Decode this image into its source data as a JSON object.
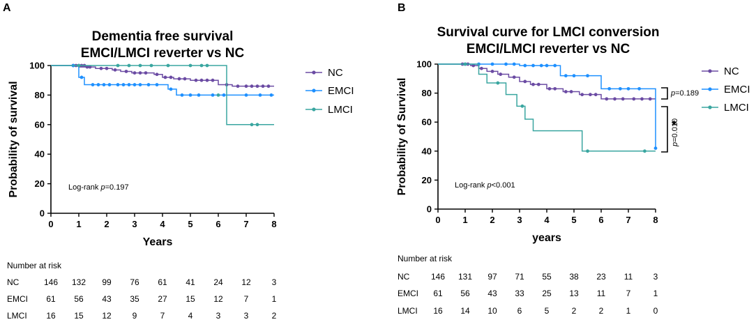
{
  "chart_data": [
    {
      "panel_label": "A",
      "type": "line",
      "title": "Dementia free survival",
      "subtitle": "EMCI/LMCI reverter vs NC",
      "xlabel": "Years",
      "ylabel": "Probability of survival",
      "xlim": [
        0,
        8
      ],
      "ylim": [
        0,
        100
      ],
      "xticks": [
        0,
        1,
        2,
        3,
        4,
        5,
        6,
        7,
        8
      ],
      "yticks": [
        0,
        20,
        40,
        60,
        80,
        100
      ],
      "grid": false,
      "legend_position": "right",
      "annotation_prefix": "Log-rank ",
      "annotation_p": "p",
      "annotation_value": "=0.197",
      "series": [
        {
          "name": "NC",
          "color": "#6b4ba3",
          "steps": [
            [
              0,
              100
            ],
            [
              1.0,
              99
            ],
            [
              1.6,
              98
            ],
            [
              2.2,
              97
            ],
            [
              2.5,
              96
            ],
            [
              2.9,
              95
            ],
            [
              3.7,
              94
            ],
            [
              4.0,
              92
            ],
            [
              4.4,
              91
            ],
            [
              5.0,
              90
            ],
            [
              6.0,
              87
            ],
            [
              6.5,
              86
            ],
            [
              8.0,
              86
            ]
          ],
          "censors": [
            [
              0.8,
              100
            ],
            [
              0.9,
              100
            ],
            [
              1.0,
              100
            ],
            [
              1.1,
              100
            ],
            [
              1.2,
              100
            ],
            [
              1.3,
              99
            ],
            [
              1.4,
              99
            ],
            [
              1.8,
              98
            ],
            [
              2.0,
              98
            ],
            [
              2.3,
              97
            ],
            [
              2.7,
              96
            ],
            [
              3.0,
              95
            ],
            [
              3.2,
              95
            ],
            [
              3.4,
              95
            ],
            [
              3.8,
              94
            ],
            [
              4.1,
              92
            ],
            [
              4.3,
              92
            ],
            [
              4.6,
              91
            ],
            [
              4.8,
              91
            ],
            [
              5.2,
              90
            ],
            [
              5.4,
              90
            ],
            [
              5.6,
              90
            ],
            [
              5.8,
              90
            ],
            [
              6.3,
              87
            ],
            [
              6.7,
              86
            ],
            [
              7.0,
              86
            ],
            [
              7.2,
              86
            ],
            [
              7.4,
              86
            ],
            [
              7.6,
              86
            ],
            [
              7.8,
              86
            ]
          ]
        },
        {
          "name": "EMCI",
          "color": "#1e90ff",
          "steps": [
            [
              0,
              100
            ],
            [
              1.0,
              92
            ],
            [
              1.2,
              87
            ],
            [
              4.2,
              84
            ],
            [
              4.5,
              80
            ],
            [
              8.0,
              80
            ]
          ],
          "censors": [
            [
              0.8,
              100
            ],
            [
              1.1,
              92
            ],
            [
              1.5,
              87
            ],
            [
              1.7,
              87
            ],
            [
              1.9,
              87
            ],
            [
              2.1,
              87
            ],
            [
              2.4,
              87
            ],
            [
              2.6,
              87
            ],
            [
              2.8,
              87
            ],
            [
              3.0,
              87
            ],
            [
              3.2,
              87
            ],
            [
              3.5,
              87
            ],
            [
              3.8,
              87
            ],
            [
              4.3,
              84
            ],
            [
              4.7,
              80
            ],
            [
              5.0,
              80
            ],
            [
              5.3,
              80
            ],
            [
              5.8,
              80
            ],
            [
              6.2,
              80
            ],
            [
              7.0,
              80
            ],
            [
              7.5,
              80
            ],
            [
              7.9,
              80
            ]
          ]
        },
        {
          "name": "LMCI",
          "color": "#3aa6a0",
          "steps": [
            [
              0,
              100
            ],
            [
              5.7,
              100
            ],
            [
              6.3,
              60
            ],
            [
              8.0,
              60
            ]
          ],
          "censors": [
            [
              1.0,
              100
            ],
            [
              2.4,
              100
            ],
            [
              2.8,
              100
            ],
            [
              3.2,
              100
            ],
            [
              3.6,
              100
            ],
            [
              4.2,
              100
            ],
            [
              5.0,
              100
            ],
            [
              5.4,
              100
            ],
            [
              5.6,
              100
            ],
            [
              6.0,
              80
            ],
            [
              7.2,
              60
            ],
            [
              7.4,
              60
            ]
          ]
        }
      ],
      "risk_table": {
        "title": "Number at risk",
        "rows": [
          {
            "label": "NC",
            "values": [
              "146",
              "132",
              "99",
              "76",
              "61",
              "41",
              "24",
              "12",
              "3"
            ]
          },
          {
            "label": "EMCI",
            "values": [
              "61",
              "56",
              "43",
              "35",
              "27",
              "15",
              "12",
              "7",
              "1"
            ]
          },
          {
            "label": "LMCI",
            "values": [
              "16",
              "15",
              "12",
              "9",
              "7",
              "4",
              "3",
              "3",
              "2"
            ]
          }
        ]
      }
    },
    {
      "panel_label": "B",
      "type": "line",
      "title": "Survival curve for LMCI conversion",
      "subtitle": "EMCI/LMCI reverter vs NC",
      "xlabel": "years",
      "ylabel": "Probability of Survival",
      "xlim": [
        0,
        8
      ],
      "ylim": [
        0,
        100
      ],
      "xticks": [
        0,
        1,
        2,
        3,
        4,
        5,
        6,
        7,
        8
      ],
      "yticks": [
        0,
        20,
        40,
        60,
        80,
        100
      ],
      "grid": false,
      "legend_position": "right",
      "annotation_prefix": "Log-rank ",
      "annotation_p": "p",
      "annotation_value": "<0.001",
      "comparisons": [
        {
          "p_label": "p",
          "p_value": "=0.189",
          "star": "",
          "from": 92,
          "to": 80
        },
        {
          "p_label": "p",
          "p_value": "=0.010",
          "star": "*",
          "from": 70,
          "to": 38
        }
      ],
      "series": [
        {
          "name": "NC",
          "color": "#6b4ba3",
          "steps": [
            [
              0,
              100
            ],
            [
              1.2,
              99
            ],
            [
              1.5,
              97
            ],
            [
              1.8,
              95
            ],
            [
              2.2,
              93
            ],
            [
              2.6,
              91
            ],
            [
              3.0,
              88
            ],
            [
              3.4,
              86
            ],
            [
              4.0,
              83
            ],
            [
              4.6,
              81
            ],
            [
              5.2,
              79
            ],
            [
              6.0,
              76
            ],
            [
              8.0,
              76
            ]
          ],
          "censors": [
            [
              0.9,
              100
            ],
            [
              1.1,
              100
            ],
            [
              1.3,
              99
            ],
            [
              1.6,
              97
            ],
            [
              2.0,
              95
            ],
            [
              2.3,
              93
            ],
            [
              2.8,
              91
            ],
            [
              3.2,
              88
            ],
            [
              3.5,
              86
            ],
            [
              3.7,
              86
            ],
            [
              4.1,
              83
            ],
            [
              4.3,
              83
            ],
            [
              4.7,
              81
            ],
            [
              4.9,
              81
            ],
            [
              5.3,
              79
            ],
            [
              5.6,
              79
            ],
            [
              5.8,
              79
            ],
            [
              6.2,
              76
            ],
            [
              6.5,
              76
            ],
            [
              6.8,
              76
            ],
            [
              7.2,
              76
            ],
            [
              7.5,
              76
            ],
            [
              7.8,
              76
            ]
          ]
        },
        {
          "name": "EMCI",
          "color": "#1e90ff",
          "steps": [
            [
              0,
              100
            ],
            [
              3.0,
              99
            ],
            [
              4.5,
              92
            ],
            [
              6.0,
              83
            ],
            [
              7.7,
              83
            ],
            [
              8.0,
              42
            ]
          ],
          "censors": [
            [
              1.0,
              100
            ],
            [
              1.5,
              100
            ],
            [
              2.0,
              100
            ],
            [
              2.5,
              100
            ],
            [
              2.8,
              100
            ],
            [
              3.2,
              99
            ],
            [
              3.5,
              99
            ],
            [
              3.8,
              99
            ],
            [
              4.0,
              99
            ],
            [
              4.3,
              99
            ],
            [
              4.7,
              92
            ],
            [
              5.0,
              92
            ],
            [
              5.5,
              92
            ],
            [
              6.3,
              83
            ],
            [
              6.7,
              83
            ],
            [
              7.0,
              83
            ],
            [
              7.4,
              83
            ],
            [
              8.0,
              42
            ]
          ]
        },
        {
          "name": "LMCI",
          "color": "#3aa6a0",
          "steps": [
            [
              0,
              100
            ],
            [
              1.5,
              93
            ],
            [
              1.8,
              87
            ],
            [
              2.5,
              79
            ],
            [
              2.9,
              71
            ],
            [
              3.2,
              62
            ],
            [
              3.5,
              54
            ],
            [
              5.3,
              40
            ],
            [
              8.0,
              40
            ]
          ],
          "censors": [
            [
              1.0,
              100
            ],
            [
              2.2,
              87
            ],
            [
              3.1,
              71
            ],
            [
              5.5,
              40
            ],
            [
              7.6,
              40
            ]
          ]
        }
      ],
      "risk_table": {
        "title": "Number at risk",
        "rows": [
          {
            "label": "NC",
            "values": [
              "146",
              "131",
              "97",
              "71",
              "55",
              "38",
              "23",
              "11",
              "3"
            ]
          },
          {
            "label": "EMCI",
            "values": [
              "61",
              "56",
              "43",
              "33",
              "25",
              "13",
              "11",
              "7",
              "1"
            ]
          },
          {
            "label": "LMCI",
            "values": [
              "16",
              "14",
              "10",
              "6",
              "5",
              "2",
              "2",
              "1",
              "0"
            ]
          }
        ]
      }
    }
  ]
}
